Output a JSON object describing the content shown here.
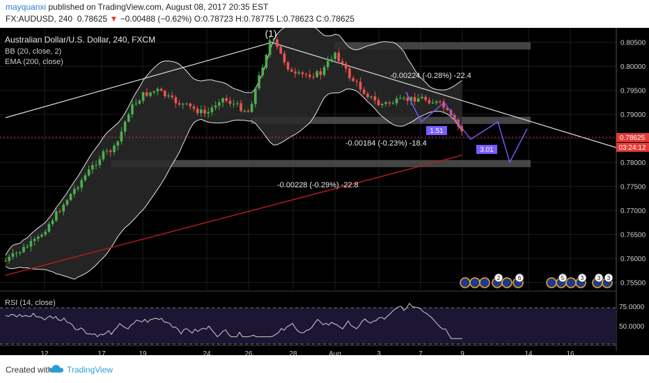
{
  "header": {
    "user": "mayquanxi",
    "published_text": "published on TradingView.com, August 08, 2017 20:35 EST",
    "symbol": "FX:AUDUSD, 240",
    "last": "0.78625",
    "change_arrow": "▼",
    "change": "−0.00488 (−0.62%)",
    "o_label": "O:",
    "o_value": "0.78723",
    "h_label": "H:",
    "h_value": "0.78775",
    "l_label": "L:",
    "l_value": "0.78623",
    "c_label": "C:",
    "c_value": "0.78625"
  },
  "legend": {
    "title": "Australian Dollar/U.S. Dollar, 240, FXCM",
    "bb": "BB (20, close, 2)",
    "ema": "EMA (200, close)"
  },
  "wave_label": "(1)",
  "annotations": {
    "measure_top": "-0.00224 (-0.28%) -22.4",
    "measure_mid": "-0.00184 (-0.23%) -18.4",
    "measure_bottom": "-0.00228 (-0.29%) -22.8",
    "ratio_1": "1.51",
    "ratio_2": "3.01"
  },
  "event_badges": [
    "2",
    "6",
    "5",
    "3",
    "3",
    "3"
  ],
  "price_badge": {
    "price": "0.78625",
    "countdown": "03:24:12"
  },
  "rsi": {
    "label": "RSI (14, close)",
    "ticks": [
      "75.0000",
      "50.0000"
    ]
  },
  "footer": {
    "created": "Created with",
    "brand": "TradingView"
  },
  "colors": {
    "up": "#4caf50",
    "down": "#ef5350",
    "ema": "#b71c1c",
    "pattern": "#7b5cff",
    "bg": "#000000"
  },
  "chart_data": {
    "type": "candlestick",
    "symbol": "AUDUSD",
    "interval": "240",
    "x_ticks": [
      "12",
      "17",
      "19",
      "24",
      "26",
      "28",
      "Aug",
      "3",
      "7",
      "9",
      "14",
      "16"
    ],
    "y_ticks": [
      "0.80500",
      "0.80000",
      "0.79500",
      "0.79000",
      "0.78500",
      "0.78000",
      "0.77500",
      "0.77000",
      "0.76500",
      "0.76000",
      "0.75500"
    ],
    "ylim": [
      0.7535,
      0.808
    ],
    "last_price": 0.78625,
    "close_path": [
      {
        "x": "11",
        "y": 0.7595
      },
      {
        "x": "13",
        "y": 0.764
      },
      {
        "x": "15",
        "y": 0.775
      },
      {
        "x": "16",
        "y": 0.7815
      },
      {
        "x": "17",
        "y": 0.783
      },
      {
        "x": "18",
        "y": 0.791
      },
      {
        "x": "19",
        "y": 0.794
      },
      {
        "x": "20",
        "y": 0.795
      },
      {
        "x": "21",
        "y": 0.793
      },
      {
        "x": "24",
        "y": 0.79
      },
      {
        "x": "25",
        "y": 0.7935
      },
      {
        "x": "26",
        "y": 0.7905
      },
      {
        "x": "27",
        "y": 0.806
      },
      {
        "x": "28",
        "y": 0.798
      },
      {
        "x": "31",
        "y": 0.7985
      },
      {
        "x": "Aug 1",
        "y": 0.803
      },
      {
        "x": "Aug 2",
        "y": 0.798
      },
      {
        "x": "Aug 3",
        "y": 0.795
      },
      {
        "x": "Aug 4",
        "y": 0.792
      },
      {
        "x": "Aug 7",
        "y": 0.7935
      },
      {
        "x": "Aug 8",
        "y": 0.792
      },
      {
        "x": "Aug 9",
        "y": 0.78625
      }
    ],
    "ema_200": [
      {
        "x": "11",
        "y": 0.7565
      },
      {
        "x": "Aug 9",
        "y": 0.7815
      }
    ],
    "zones": [
      {
        "from": 0.8035,
        "to": 0.805
      },
      {
        "from": 0.788,
        "to": 0.7895
      },
      {
        "from": 0.779,
        "to": 0.7805
      }
    ],
    "rsi_14": {
      "ylim": [
        35,
        85
      ],
      "levels": [
        70,
        30
      ],
      "last": 36
    }
  }
}
